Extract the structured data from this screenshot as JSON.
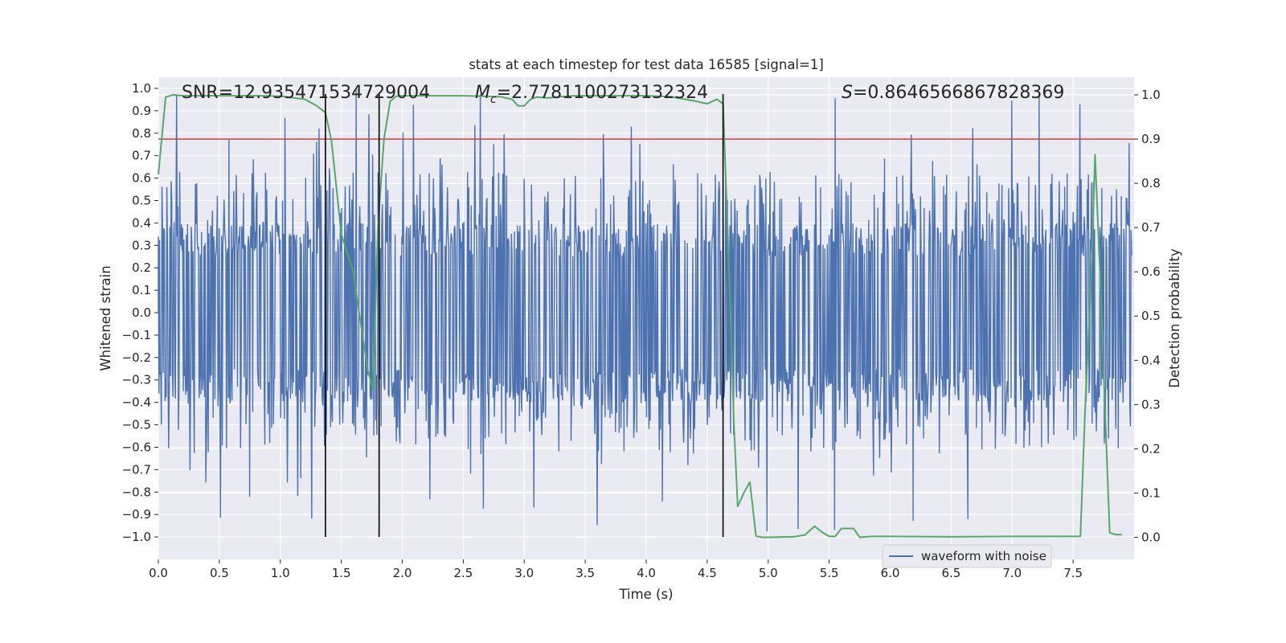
{
  "chart_data": {
    "type": "line",
    "title": "stats at each timestep for test data 16585 [signal=1]",
    "xlabel": "Time (s)",
    "ylabel": "Whitened strain",
    "y2label": "Detection probability",
    "xlim": [
      0.0,
      8.0
    ],
    "ylim": [
      -1.1,
      1.05
    ],
    "y2lim": [
      -0.05,
      1.04
    ],
    "x_ticks": [
      "0.0",
      "0.5",
      "1.0",
      "1.5",
      "2.0",
      "2.5",
      "3.0",
      "3.5",
      "4.0",
      "4.5",
      "5.0",
      "5.5",
      "6.0",
      "6.5",
      "7.0",
      "7.5"
    ],
    "y_ticks": [
      "1.0",
      "0.9",
      "0.8",
      "0.7",
      "0.6",
      "0.5",
      "0.4",
      "0.3",
      "0.2",
      "0.1",
      "0.0",
      "-0.1",
      "-0.2",
      "-0.3",
      "-0.4",
      "-0.5",
      "-0.6",
      "-0.7",
      "-0.8",
      "-0.9",
      "-1.0"
    ],
    "y2_ticks": [
      "1.0",
      "0.9",
      "0.8",
      "0.7",
      "0.6",
      "0.5",
      "0.4",
      "0.3",
      "0.2",
      "0.1",
      "0.0"
    ],
    "annotations": {
      "snr_prefix": "SNR=",
      "snr": "12.935471534729004",
      "mc_symbol": "M",
      "mc_subscript": "c",
      "mc_value": "=2.7781100273132324",
      "s_symbol": "S",
      "s_value": "=0.8646566867828369"
    },
    "threshold": 0.9,
    "vertical_markers": [
      1.37,
      1.81,
      4.63
    ],
    "series": [
      {
        "name": "waveform with noise",
        "axis": "left",
        "color": "#4c72b0",
        "description": "Dense noise waveform, mostly within ±0.35 with spikes up to about ±1.0",
        "core_amplitude": 0.35,
        "max_amplitude": 1.0,
        "sample_count": 1600
      },
      {
        "name": "detection probability",
        "axis": "right",
        "color": "#55a868",
        "x": [
          0.0,
          0.06,
          0.12,
          0.2,
          0.4,
          0.8,
          1.0,
          1.2,
          1.3,
          1.37,
          1.42,
          1.5,
          1.6,
          1.65,
          1.72,
          1.76,
          1.8,
          1.85,
          1.9,
          1.95,
          2.0,
          2.2,
          2.5,
          2.8,
          2.9,
          2.95,
          3.0,
          3.05,
          3.1,
          3.2,
          3.3,
          3.4,
          3.6,
          3.8,
          4.0,
          4.2,
          4.4,
          4.5,
          4.58,
          4.63,
          4.68,
          4.72,
          4.75,
          4.8,
          4.85,
          4.9,
          4.95,
          5.0,
          5.2,
          5.3,
          5.38,
          5.45,
          5.5,
          5.55,
          5.6,
          5.65,
          5.7,
          5.75,
          5.85,
          6.0,
          6.5,
          7.0,
          7.3,
          7.5,
          7.56,
          7.6,
          7.65,
          7.68,
          7.72,
          7.76,
          7.8,
          7.85,
          7.9
        ],
        "y": [
          0.82,
          0.995,
          1.0,
          0.998,
          0.998,
          0.998,
          0.997,
          0.99,
          0.975,
          0.96,
          0.895,
          0.685,
          0.6,
          0.5,
          0.375,
          0.335,
          0.7,
          0.9,
          0.985,
          0.997,
          0.998,
          0.998,
          0.998,
          0.996,
          0.99,
          0.975,
          0.975,
          0.99,
          0.995,
          0.993,
          0.996,
          0.998,
          0.998,
          0.998,
          0.998,
          0.996,
          0.986,
          0.98,
          0.99,
          0.98,
          0.6,
          0.25,
          0.07,
          0.1,
          0.125,
          0.003,
          0.0,
          0.0,
          0.001,
          0.005,
          0.025,
          0.01,
          0.002,
          0.002,
          0.02,
          0.02,
          0.02,
          0.0,
          0.002,
          0.002,
          0.001,
          0.002,
          0.002,
          0.002,
          0.002,
          0.3,
          0.6,
          0.865,
          0.6,
          0.3,
          0.01,
          0.006,
          0.006
        ]
      }
    ],
    "legend": {
      "entries": [
        "waveform with noise"
      ],
      "location": "lower-right"
    }
  }
}
